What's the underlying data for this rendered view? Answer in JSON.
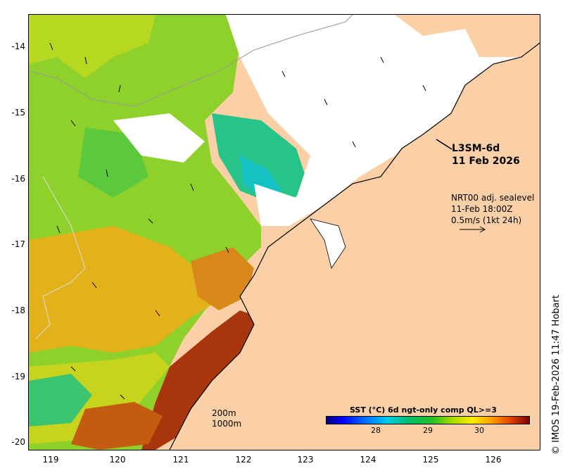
{
  "map": {
    "product_label": "L3SM-6d",
    "date_label": "11 Feb 2026",
    "current_info": {
      "line1": "NRT00 adj. sealevel",
      "line2": "11-Feb 18:00Z",
      "line3": "0.5m/s (1kt 24h)"
    },
    "scale": {
      "depth_200": "200m",
      "depth_1000": "1000m"
    },
    "colorbar": {
      "title": "SST (°C) 6d ngt-only comp QL>=3",
      "ticks": [
        "28",
        "29",
        "30"
      ]
    },
    "y_axis": [
      "-14",
      "-15",
      "-16",
      "-17",
      "-18",
      "-19",
      "-20"
    ],
    "x_axis": [
      "119",
      "120",
      "121",
      "122",
      "123",
      "124",
      "125",
      "126"
    ],
    "copyright": "© IMOS 19-Feb-2026 11:47 Hobart",
    "colors": {
      "land": "#fcd0a6",
      "cloud": "#ffffff",
      "warm": "#a52a00",
      "mid": "#e8b000",
      "cool": "#66cc00",
      "cold": "#00cc88"
    }
  }
}
